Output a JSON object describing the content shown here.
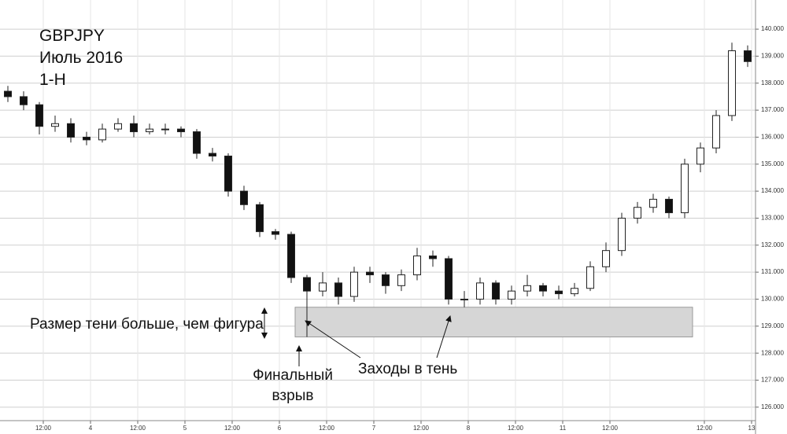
{
  "chart_data": {
    "type": "candlestick",
    "title_lines": [
      "GBPJPY",
      "Июль 2016",
      "1-H"
    ],
    "annotations": {
      "shadow": "Размер тени больше, чем фигура",
      "final": [
        "Финальный",
        "взрыв"
      ],
      "entries": "Заходы в тень"
    },
    "x": [
      2,
      6,
      10,
      14,
      18,
      22,
      26,
      30,
      34,
      38,
      42,
      46,
      50,
      54,
      58,
      62,
      66,
      70,
      74,
      78,
      82,
      86,
      90,
      94,
      98,
      102,
      106,
      110,
      114,
      118,
      122,
      126,
      130,
      134,
      138,
      142,
      146,
      150,
      154,
      158,
      162,
      166,
      170,
      174,
      178,
      182,
      186,
      190
    ],
    "open": [
      137.7,
      137.5,
      137.2,
      136.4,
      136.5,
      136.0,
      135.9,
      136.3,
      136.5,
      136.2,
      136.3,
      136.3,
      136.2,
      135.4,
      135.3,
      134.0,
      133.5,
      132.5,
      132.4,
      130.8,
      130.3,
      130.6,
      130.1,
      131.0,
      130.9,
      130.5,
      130.9,
      131.6,
      131.5,
      130.0,
      130.0,
      130.6,
      130.0,
      130.3,
      130.5,
      130.3,
      130.2,
      130.4,
      131.2,
      131.8,
      133.0,
      133.4,
      133.7,
      133.2,
      135.0,
      135.6,
      136.8,
      139.2
    ],
    "high": [
      137.9,
      137.7,
      137.3,
      136.8,
      136.7,
      136.2,
      136.5,
      136.7,
      136.8,
      136.5,
      136.5,
      136.4,
      136.3,
      135.6,
      135.4,
      134.2,
      133.6,
      132.6,
      132.5,
      130.9,
      131.0,
      130.8,
      131.2,
      131.2,
      131.0,
      131.1,
      131.9,
      131.8,
      131.6,
      130.3,
      130.8,
      130.7,
      130.5,
      130.9,
      130.6,
      130.5,
      130.6,
      131.4,
      132.1,
      133.2,
      133.6,
      133.9,
      133.8,
      135.2,
      135.8,
      137.0,
      139.5,
      139.4
    ],
    "low": [
      137.3,
      137.0,
      136.1,
      136.2,
      135.8,
      135.7,
      135.8,
      136.2,
      136.0,
      136.1,
      136.1,
      136.0,
      135.2,
      135.1,
      133.8,
      133.3,
      132.3,
      132.2,
      130.6,
      128.6,
      130.1,
      129.8,
      129.9,
      130.6,
      130.2,
      130.3,
      130.7,
      131.2,
      129.8,
      129.7,
      129.8,
      129.8,
      129.8,
      130.1,
      130.1,
      130.0,
      130.1,
      130.3,
      131.0,
      131.6,
      132.8,
      133.2,
      133.0,
      133.0,
      134.7,
      135.4,
      136.6,
      138.6
    ],
    "close": [
      137.5,
      137.2,
      136.4,
      136.5,
      136.0,
      135.9,
      136.3,
      136.5,
      136.2,
      136.3,
      136.3,
      136.2,
      135.4,
      135.3,
      134.0,
      133.5,
      132.5,
      132.4,
      130.8,
      130.3,
      130.6,
      130.1,
      131.0,
      130.9,
      130.5,
      130.9,
      131.6,
      131.5,
      130.0,
      130.0,
      130.6,
      130.0,
      130.3,
      130.5,
      130.3,
      130.2,
      130.4,
      131.2,
      131.8,
      133.0,
      133.4,
      133.7,
      133.2,
      135.0,
      135.6,
      136.8,
      139.2,
      138.8
    ],
    "up_color": "#ffffff",
    "down_color": "#111111",
    "wick_color": "#222222",
    "zone": {
      "xlim": [
        75,
        176
      ],
      "ylim": [
        128.6,
        129.7
      ],
      "color": "#d6d6d6"
    },
    "xlim": [
      0,
      192
    ],
    "xticks": [
      {
        "value": 11,
        "label": "12:00"
      },
      {
        "value": 23,
        "label": "4"
      },
      {
        "value": 35,
        "label": "12:00"
      },
      {
        "value": 47,
        "label": "5"
      },
      {
        "value": 59,
        "label": "12:00"
      },
      {
        "value": 71,
        "label": "6"
      },
      {
        "value": 83,
        "label": "12:00"
      },
      {
        "value": 95,
        "label": "7"
      },
      {
        "value": 107,
        "label": "12:00"
      },
      {
        "value": 119,
        "label": "8"
      },
      {
        "value": 131,
        "label": "12:00"
      },
      {
        "value": 143,
        "label": "11"
      },
      {
        "value": 155,
        "label": "12:00"
      },
      {
        "value": 179,
        "label": "12:00"
      },
      {
        "value": 191,
        "label": "13"
      }
    ],
    "ylim": [
      125.5,
      141.08
    ],
    "yticks": [
      {
        "value": 126,
        "label": "126.000"
      },
      {
        "value": 127,
        "label": "127.000"
      },
      {
        "value": 128,
        "label": "128.000"
      },
      {
        "value": 129,
        "label": "129.000"
      },
      {
        "value": 130,
        "label": "130.000"
      },
      {
        "value": 131,
        "label": "131.000"
      },
      {
        "value": 132,
        "label": "132.000"
      },
      {
        "value": 133,
        "label": "133.000"
      },
      {
        "value": 134,
        "label": "134.000"
      },
      {
        "value": 135,
        "label": "135.000"
      },
      {
        "value": 136,
        "label": "136.000"
      },
      {
        "value": 137,
        "label": "137.000"
      },
      {
        "value": 138,
        "label": "138.000"
      },
      {
        "value": 139,
        "label": "139.000"
      },
      {
        "value": 140,
        "label": "140.000"
      }
    ],
    "grid": true
  }
}
